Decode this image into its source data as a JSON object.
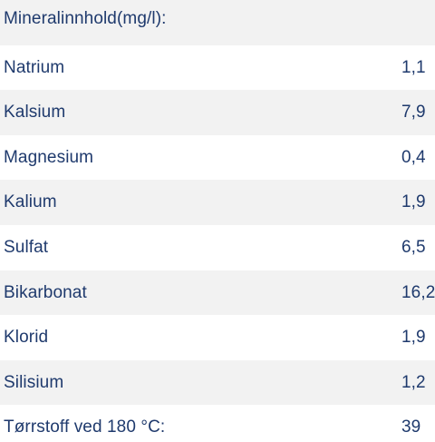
{
  "table": {
    "header": "Mineralinnhold(mg/l):",
    "rows": [
      {
        "name": "Natrium",
        "value": "1,1"
      },
      {
        "name": "Kalsium",
        "value": "7,9"
      },
      {
        "name": "Magnesium",
        "value": "0,4"
      },
      {
        "name": "Kalium",
        "value": "1,9"
      },
      {
        "name": "Sulfat",
        "value": "6,5"
      },
      {
        "name": "Bikarbonat",
        "value": "16,2"
      },
      {
        "name": "Klorid",
        "value": "1,9"
      },
      {
        "name": "Silisium",
        "value": "1,2"
      }
    ],
    "footer": {
      "name": "Tørrstoff ved 180 °C:",
      "value": "39"
    }
  }
}
